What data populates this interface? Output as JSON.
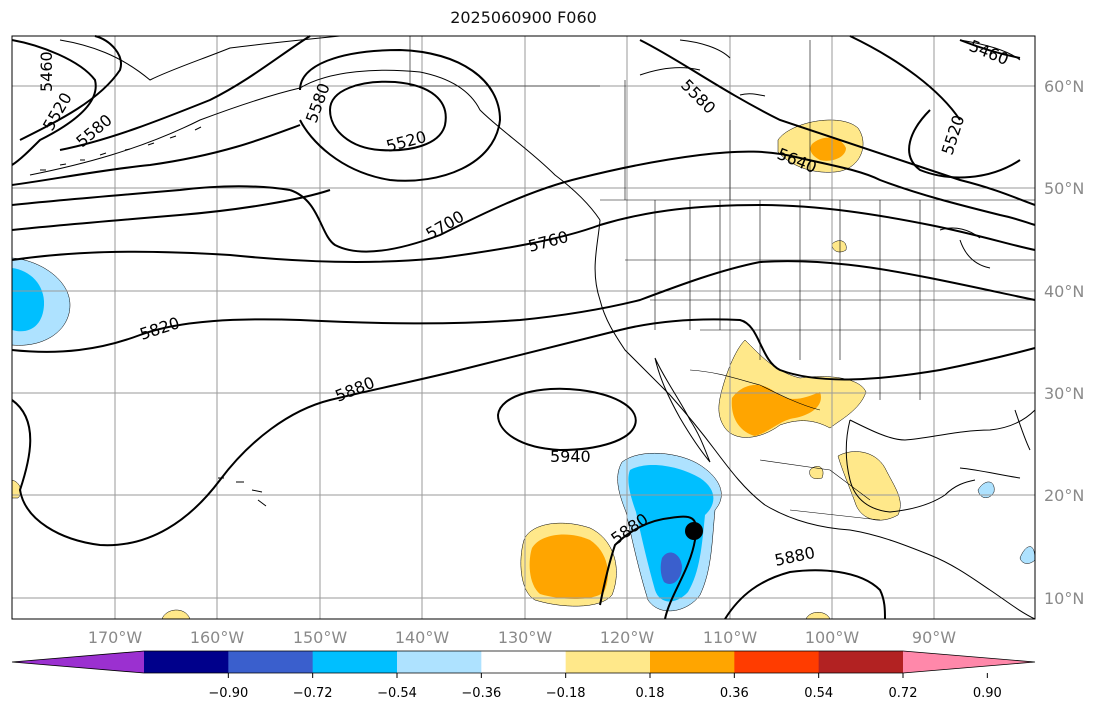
{
  "title": "2025060900 F060",
  "map": {
    "latitude_labels": [
      "60°N",
      "50°N",
      "40°N",
      "30°N",
      "20°N",
      "10°N"
    ],
    "longitude_labels": [
      "170°W",
      "160°W",
      "150°W",
      "140°W",
      "130°W",
      "120°W",
      "110°W",
      "100°W",
      "90°W"
    ],
    "contour_labels": [
      {
        "text": "5460"
      },
      {
        "text": "5520"
      },
      {
        "text": "5580"
      },
      {
        "text": "5580"
      },
      {
        "text": "5520"
      },
      {
        "text": "5580"
      },
      {
        "text": "5640"
      },
      {
        "text": "5460"
      },
      {
        "text": "5520"
      },
      {
        "text": "5700"
      },
      {
        "text": "5760"
      },
      {
        "text": "5820"
      },
      {
        "text": "5880"
      },
      {
        "text": "5940"
      },
      {
        "text": "5880"
      },
      {
        "text": "5880"
      }
    ],
    "marker": "black-dot"
  },
  "colorbar": {
    "ticks": [
      "−0.90",
      "−0.72",
      "−0.54",
      "−0.36",
      "−0.18",
      "0.18",
      "0.36",
      "0.54",
      "0.72",
      "0.90"
    ],
    "colors": [
      "#9b30d0",
      "#00008b",
      "#3a5fcd",
      "#00bfff",
      "#aee2ff",
      "#ffffff",
      "#ffe88a",
      "#ffa500",
      "#ff3c00",
      "#b22222",
      "#ff88aa"
    ]
  }
}
